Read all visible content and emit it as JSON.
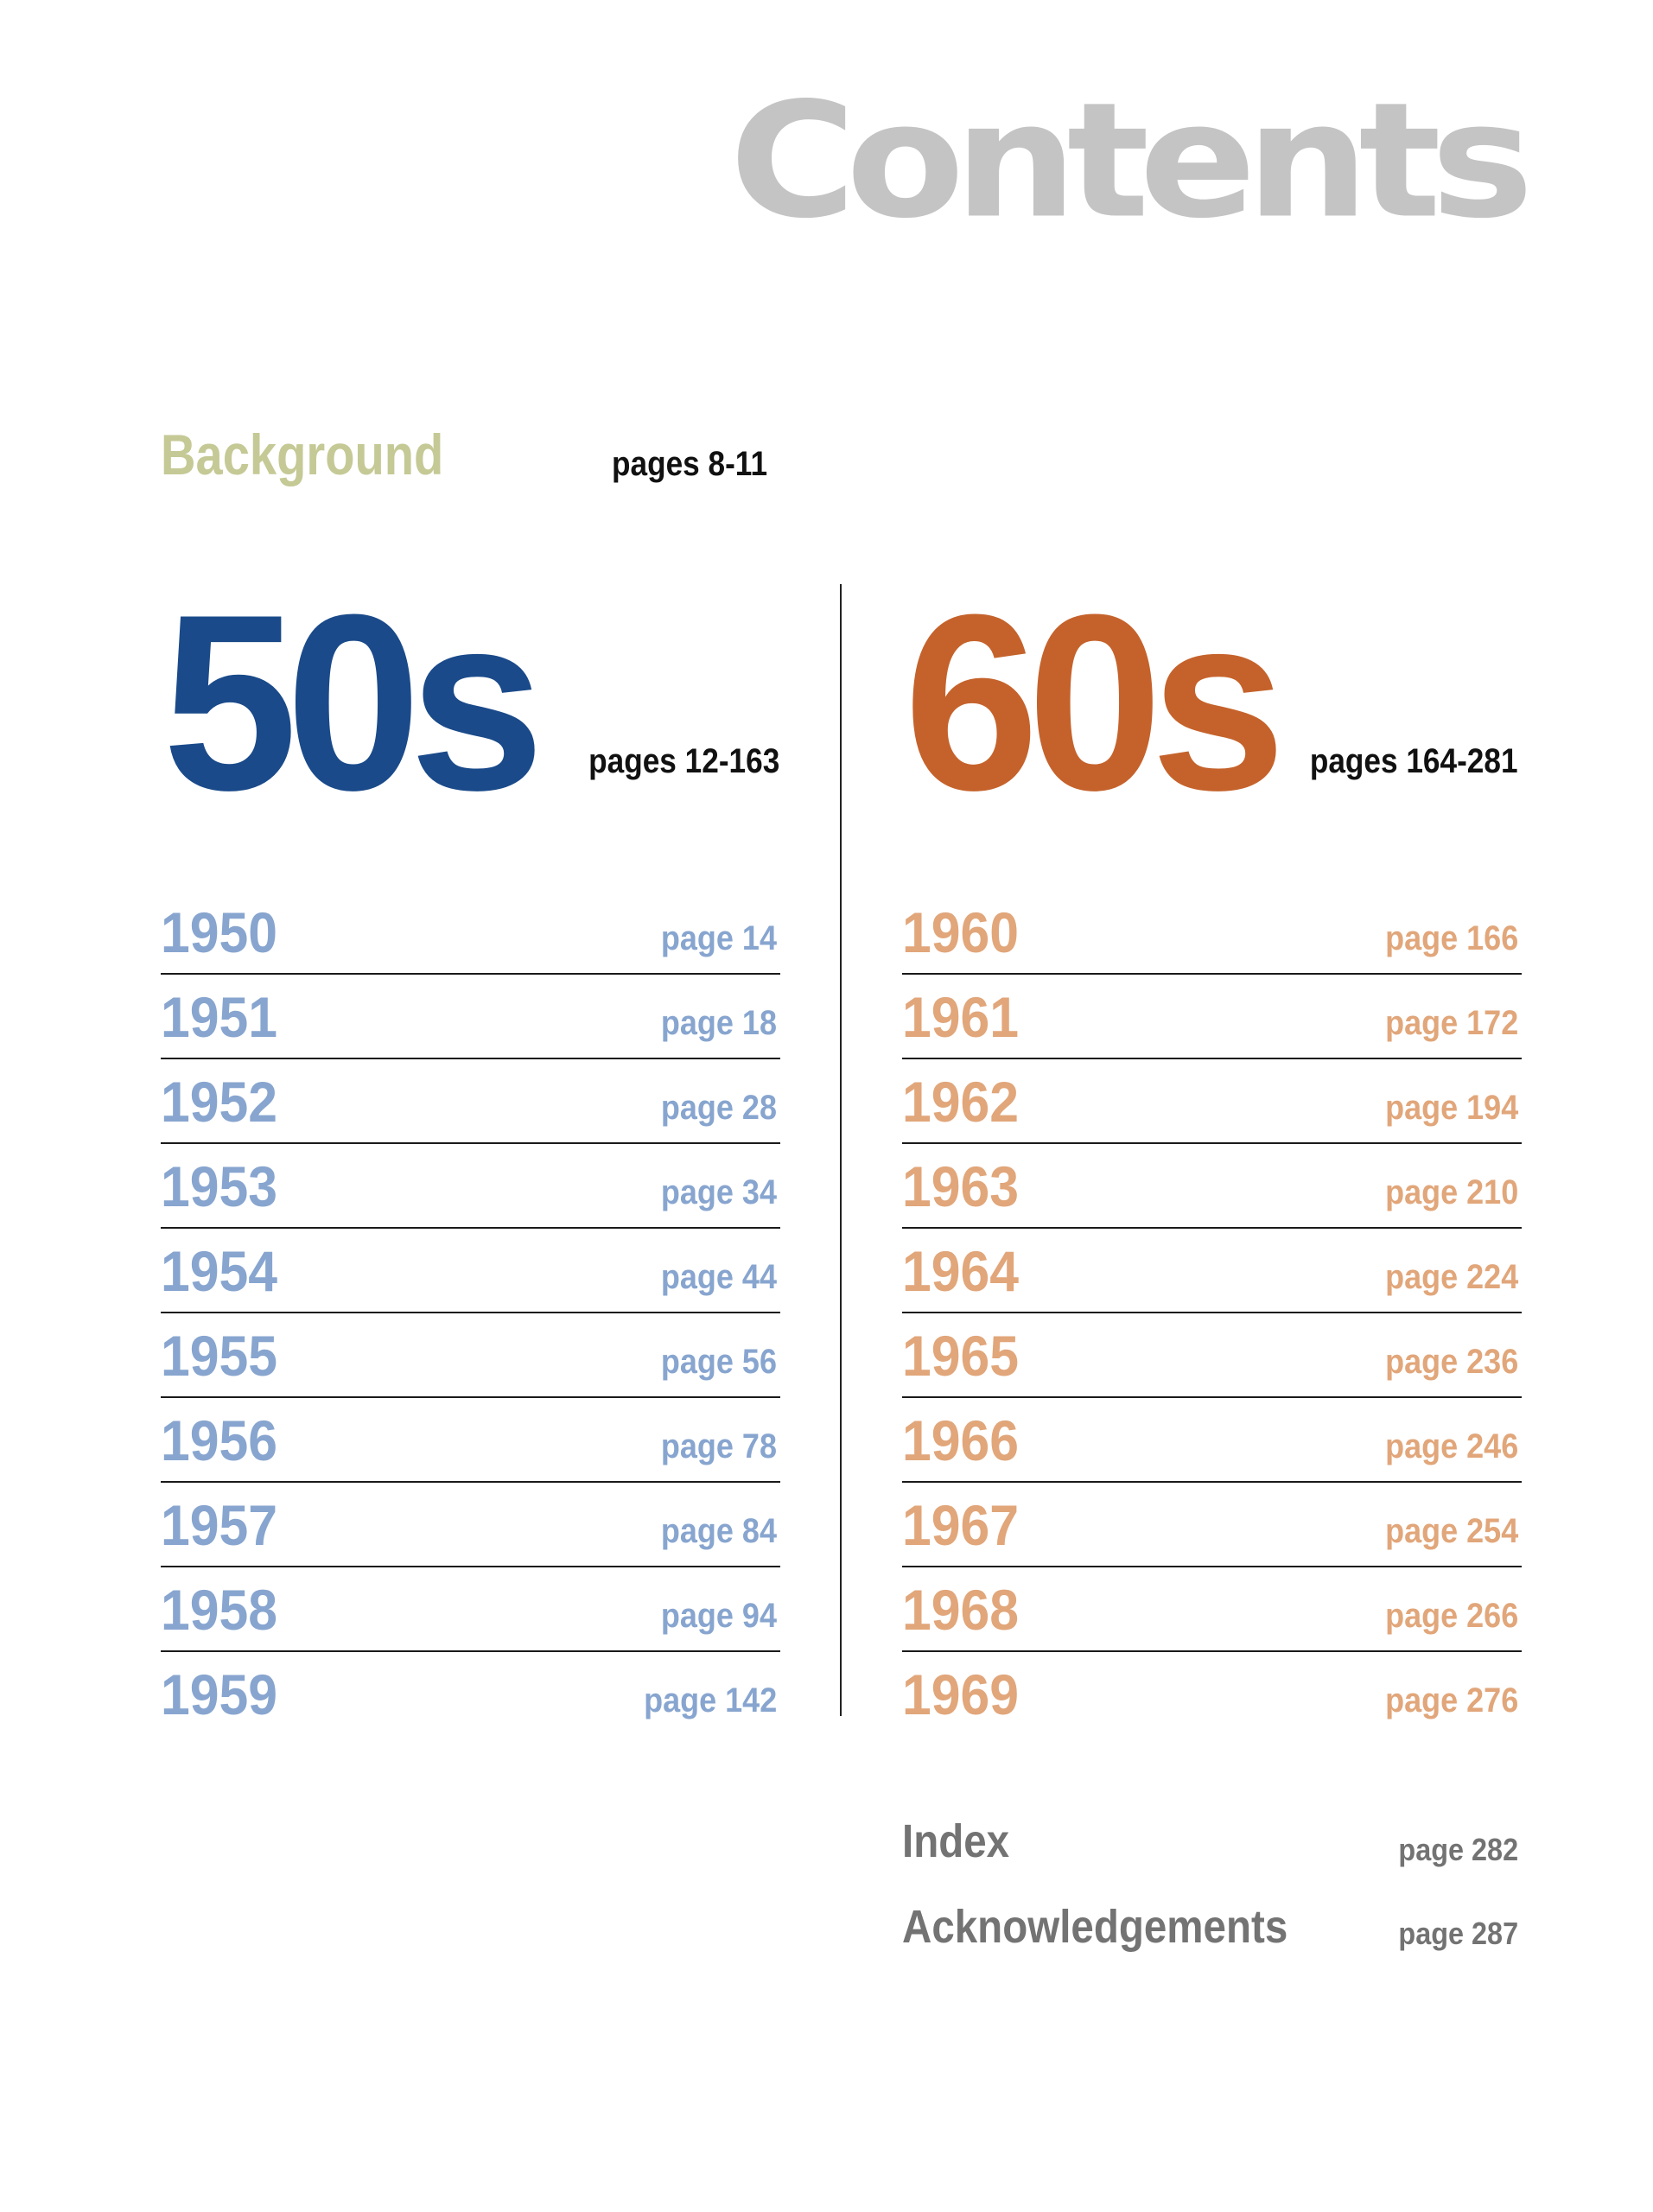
{
  "title": "Contents",
  "background": {
    "label": "Background",
    "pages": "pages 8-11"
  },
  "decades": [
    {
      "label": "50s",
      "pages": "pages 12-163",
      "color": "#1a4a8a",
      "year_color": "#87a5cf",
      "years": [
        {
          "year": "1950",
          "page": "page 14"
        },
        {
          "year": "1951",
          "page": "page 18"
        },
        {
          "year": "1952",
          "page": "page 28"
        },
        {
          "year": "1953",
          "page": "page 34"
        },
        {
          "year": "1954",
          "page": "page 44"
        },
        {
          "year": "1955",
          "page": "page 56"
        },
        {
          "year": "1956",
          "page": "page 78"
        },
        {
          "year": "1957",
          "page": "page 84"
        },
        {
          "year": "1958",
          "page": "page 94"
        },
        {
          "year": "1959",
          "page": "page 142"
        }
      ]
    },
    {
      "label": "60s",
      "pages": "pages 164-281",
      "color": "#c5622b",
      "year_color": "#e1a67a",
      "years": [
        {
          "year": "1960",
          "page": "page 166"
        },
        {
          "year": "1961",
          "page": "page 172"
        },
        {
          "year": "1962",
          "page": "page 194"
        },
        {
          "year": "1963",
          "page": "page 210"
        },
        {
          "year": "1964",
          "page": "page 224"
        },
        {
          "year": "1965",
          "page": "page 236"
        },
        {
          "year": "1966",
          "page": "page 246"
        },
        {
          "year": "1967",
          "page": "page 254"
        },
        {
          "year": "1968",
          "page": "page 266"
        },
        {
          "year": "1969",
          "page": "page 276"
        }
      ]
    }
  ],
  "extras": [
    {
      "label": "Index",
      "page": "page 282"
    },
    {
      "label": "Acknowledgements",
      "page": "page 287"
    }
  ]
}
